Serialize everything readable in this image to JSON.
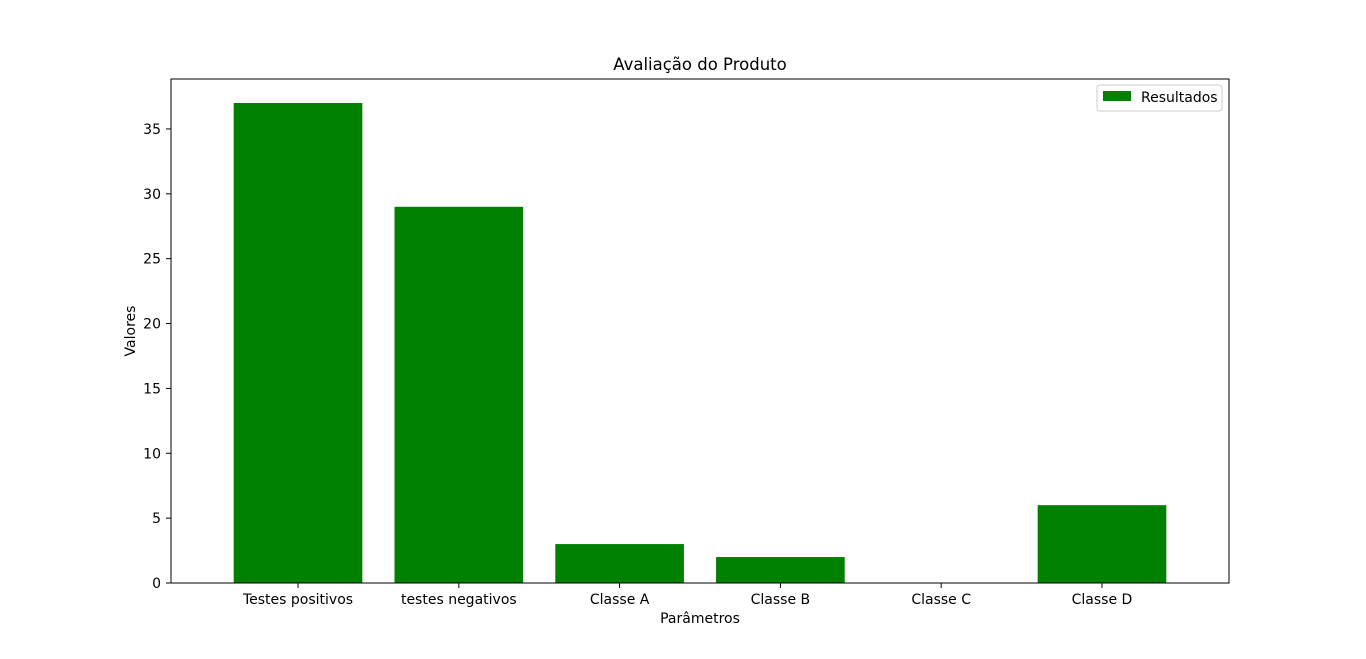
{
  "chart_data": {
    "type": "bar",
    "title": "Avaliação do Produto",
    "xlabel": "Parâmetros",
    "ylabel": "Valores",
    "categories": [
      "Testes positivos",
      "testes negativos",
      "Classe A",
      "Classe B",
      "Classe C",
      "Classe D"
    ],
    "series": [
      {
        "name": "Resultados",
        "values": [
          37,
          29,
          3,
          2,
          0,
          6
        ],
        "color": "#008000"
      }
    ],
    "ylim": [
      0,
      38.85
    ],
    "yticks": [
      0,
      5,
      10,
      15,
      20,
      25,
      30,
      35
    ],
    "grid": false,
    "legend_position": "top-right"
  }
}
